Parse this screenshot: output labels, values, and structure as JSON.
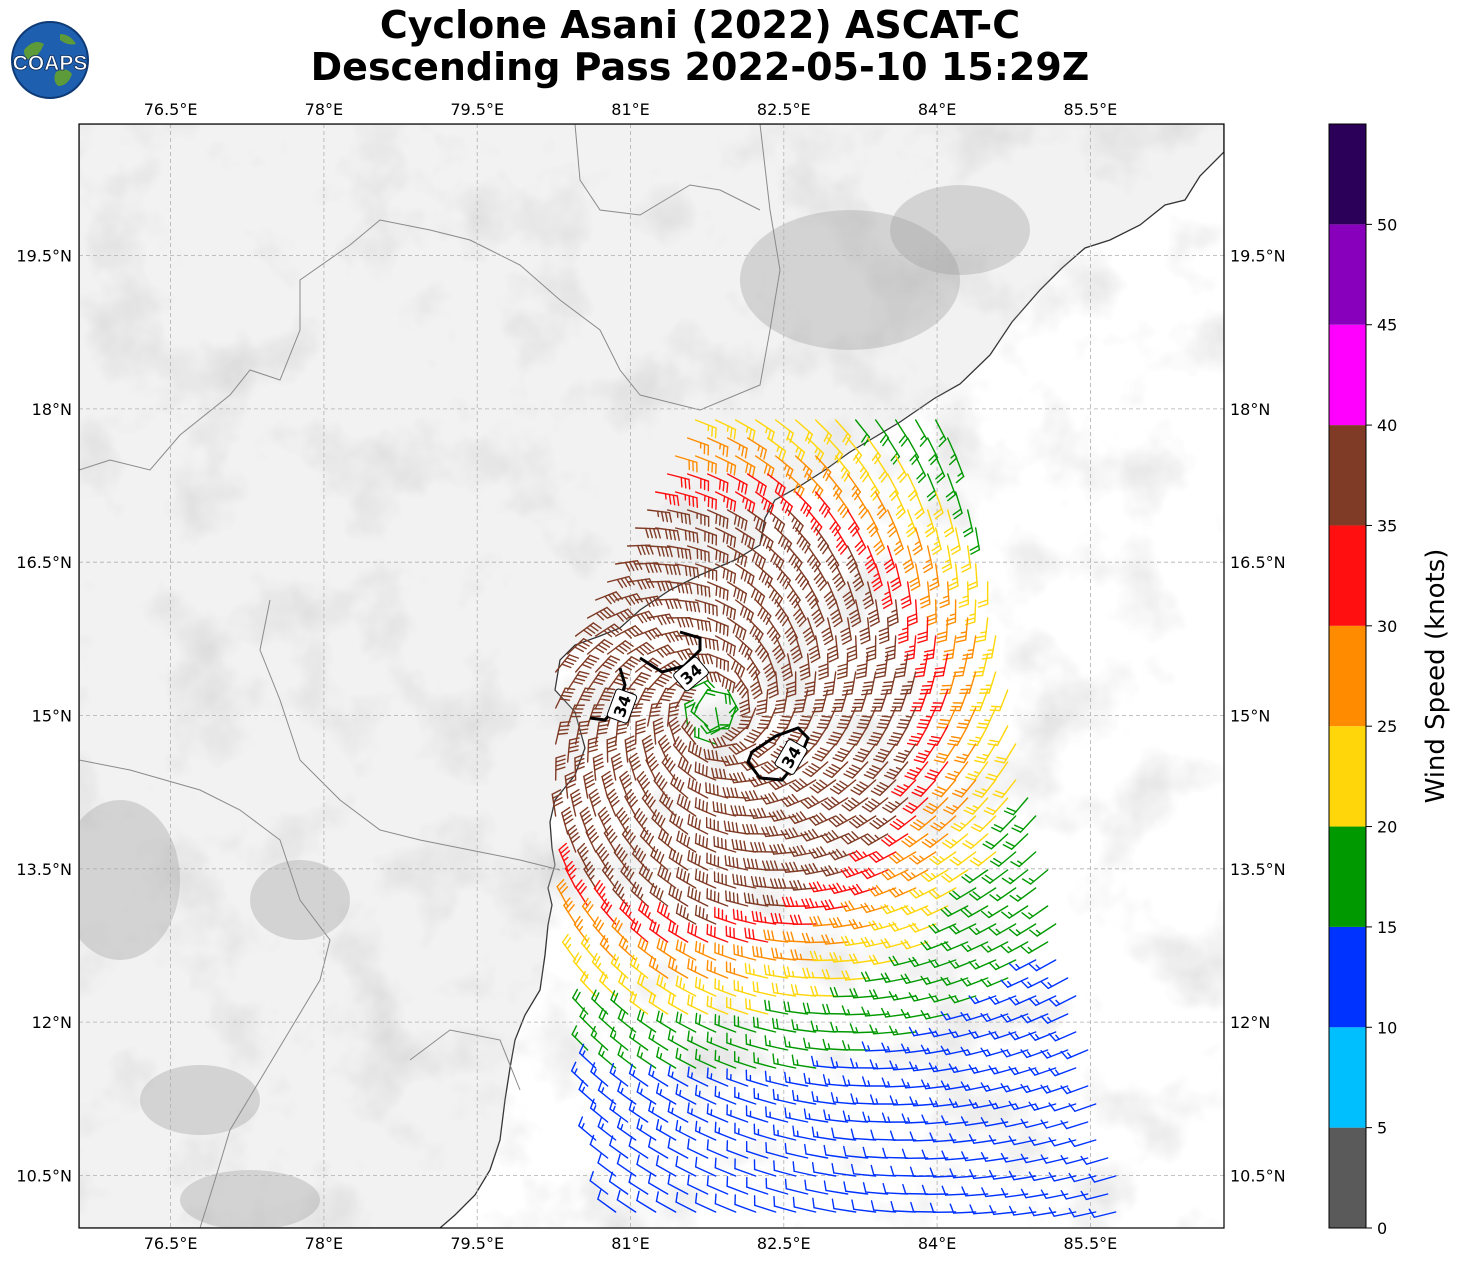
{
  "title": {
    "line1": "Cyclone Asani (2022) ASCAT-C",
    "line2": "Descending Pass 2022-05-10 15:29Z"
  },
  "logo": {
    "text": "COAPS",
    "icon": "globe-icon"
  },
  "map": {
    "lon_ticks": [
      "76.5°E",
      "78°E",
      "79.5°E",
      "81°E",
      "82.5°E",
      "84°E",
      "85.5°E"
    ],
    "lat_ticks": [
      "19.5°N",
      "18°N",
      "16.5°N",
      "15°N",
      "13.5°N",
      "12°N",
      "10.5°N"
    ],
    "lon_values": [
      76.5,
      78.0,
      79.5,
      81.0,
      82.5,
      84.0,
      85.5
    ],
    "lat_values": [
      19.5,
      18.0,
      16.5,
      15.0,
      13.5,
      12.0,
      10.5
    ],
    "extent": {
      "lon_min": 75.6,
      "lon_max": 86.8,
      "lat_min": 10.0,
      "lat_max": 20.8
    },
    "storm_center": {
      "lon": 81.8,
      "lat": 15.05
    },
    "contour_label": "34"
  },
  "colorbar": {
    "label": "Wind Speed (knots)",
    "ticks": [
      "0",
      "5",
      "10",
      "15",
      "20",
      "25",
      "30",
      "35",
      "40",
      "45",
      "50"
    ],
    "bins": [
      {
        "min": 0,
        "max": 5,
        "color": "#5a5a5a"
      },
      {
        "min": 5,
        "max": 10,
        "color": "#00bfff"
      },
      {
        "min": 10,
        "max": 15,
        "color": "#0033ff"
      },
      {
        "min": 15,
        "max": 20,
        "color": "#009900"
      },
      {
        "min": 20,
        "max": 25,
        "color": "#ffd60a"
      },
      {
        "min": 25,
        "max": 30,
        "color": "#ff8c00"
      },
      {
        "min": 30,
        "max": 35,
        "color": "#ff0f0f"
      },
      {
        "min": 35,
        "max": 40,
        "color": "#7f3b25"
      },
      {
        "min": 40,
        "max": 45,
        "color": "#ff00ff"
      },
      {
        "min": 45,
        "max": 50,
        "color": "#8800bb"
      },
      {
        "min": 50,
        "max": 55,
        "color": "#2b0059"
      }
    ]
  }
}
